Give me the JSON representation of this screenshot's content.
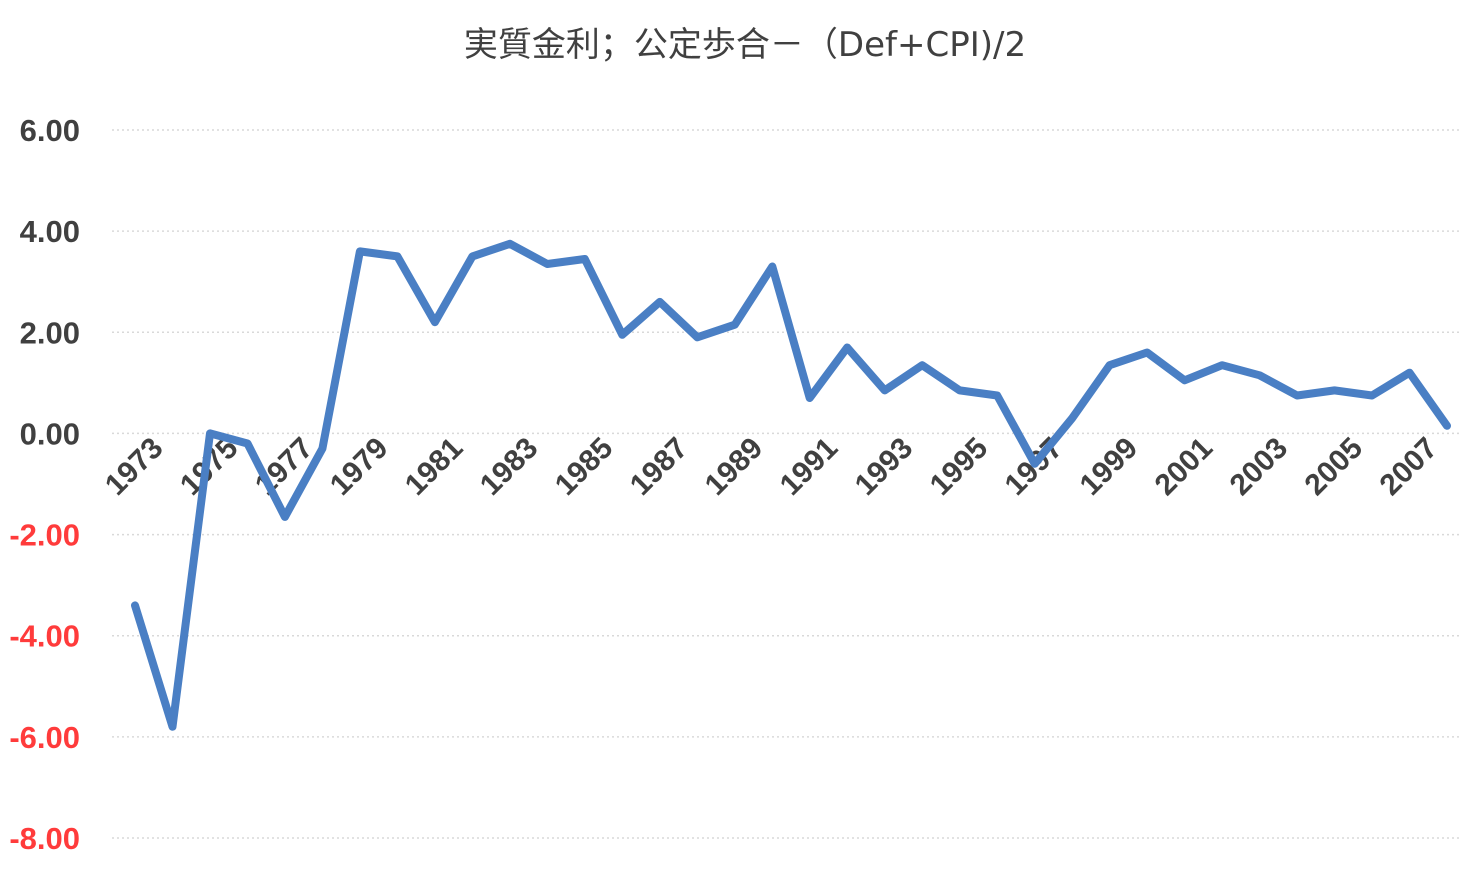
{
  "chart_data": {
    "type": "line",
    "title": "実質金利；公定歩合－（Def+CPI)/2",
    "xlabel": "",
    "ylabel": "",
    "ylim": [
      -8,
      6
    ],
    "y_ticks": [
      "6.00",
      "4.00",
      "2.00",
      "0.00",
      "-2.00",
      "-4.00",
      "-6.00",
      "-8.00"
    ],
    "y_tick_values": [
      6,
      4,
      2,
      0,
      -2,
      -4,
      -6,
      -8
    ],
    "x_tick_labels": [
      "1973",
      "1975",
      "1977",
      "1979",
      "1981",
      "1983",
      "1985",
      "1987",
      "1989",
      "1991",
      "1993",
      "1995",
      "1997",
      "1999",
      "2001",
      "2003",
      "2005",
      "2007"
    ],
    "x": [
      1973,
      1974,
      1975,
      1976,
      1977,
      1978,
      1979,
      1980,
      1981,
      1982,
      1983,
      1984,
      1985,
      1986,
      1987,
      1988,
      1989,
      1990,
      1991,
      1992,
      1993,
      1994,
      1995,
      1996,
      1997,
      1998,
      1999,
      2000,
      2001,
      2002,
      2003,
      2004,
      2005,
      2006,
      2007,
      2008
    ],
    "series": [
      {
        "values": [
          -3.4,
          -5.8,
          0.0,
          -0.2,
          -1.65,
          -0.3,
          3.6,
          3.5,
          2.2,
          3.5,
          3.75,
          3.35,
          3.45,
          1.95,
          2.6,
          1.9,
          2.15,
          3.3,
          0.7,
          1.7,
          0.85,
          1.35,
          0.85,
          0.75,
          -0.6,
          0.3,
          1.35,
          1.6,
          1.05,
          1.35,
          1.15,
          0.75,
          0.85,
          0.75,
          1.2,
          0.15
        ]
      }
    ],
    "grid": true,
    "legend": "none"
  },
  "colors": {
    "line": "#4a7fc4",
    "grid": "#d9d9d9",
    "axis_text": "#404040",
    "negative_text": "#ff3b3b",
    "title_text": "#404040"
  }
}
